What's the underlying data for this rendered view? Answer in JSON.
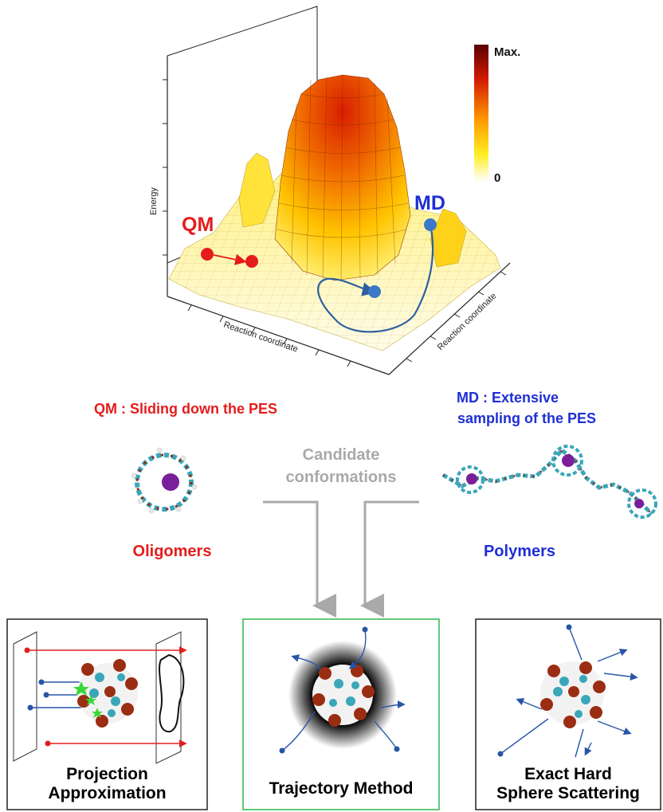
{
  "pes": {
    "axis_energy": "Energy",
    "axis_x": "Reaction coordinate",
    "axis_y": "Reaction coordinate",
    "colorbar_max": "Max.",
    "colorbar_min": "0",
    "qm_tag": "QM",
    "md_tag": "MD",
    "colors": {
      "qm": "#e51c1c",
      "md": "#1f2fd6",
      "path": "#2d5fa0",
      "ball": "#3a78c8"
    }
  },
  "middle": {
    "qm_heading": "QM : Sliding down the PES",
    "md_heading_line1": "MD : Extensive",
    "md_heading_line2": "sampling of the PES",
    "candidate_line1": "Candidate",
    "candidate_line2": "conformations",
    "oligomers": "Oligomers",
    "polymers": "Polymers"
  },
  "methods": [
    {
      "line1": "Projection",
      "line2": "Approximation",
      "border": "#222222"
    },
    {
      "line1": "Trajectory Method",
      "line2": "",
      "border": "#2fb84a"
    },
    {
      "line1": "Exact Hard",
      "line2": "Sphere Scattering",
      "border": "#222222"
    }
  ]
}
